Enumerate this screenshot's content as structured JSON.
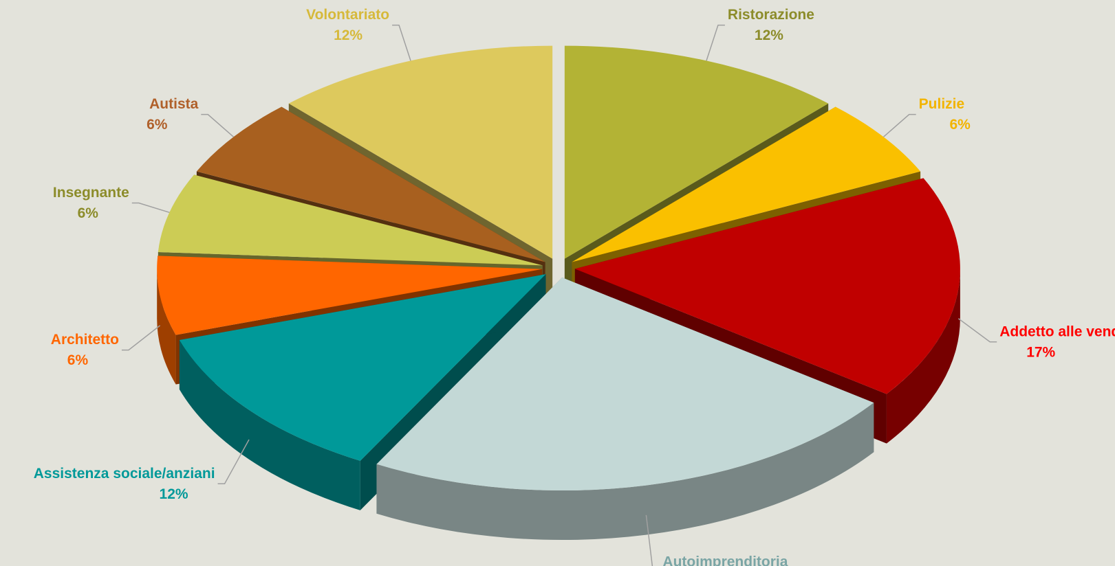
{
  "chart_data": {
    "type": "pie3d",
    "categories": [
      "Ristorazione",
      "Pulizie",
      "Addetto alle vendite",
      "Autoimprenditoria",
      "Assistenza sociale/anziani",
      "Architetto",
      "Insegnante",
      "Autista",
      "Volontariato"
    ],
    "values": [
      12,
      6,
      17,
      23,
      12,
      6,
      6,
      6,
      12
    ],
    "value_labels": [
      "12%",
      "6%",
      "17%",
      "23%",
      "12%",
      "6%",
      "6%",
      "6%",
      "12%"
    ],
    "colors": [
      "#b3b335",
      "#fac000",
      "#c00000",
      "#c3d8d6",
      "#009999",
      "#ff6600",
      "#cccc55",
      "#a8601f",
      "#ddc95d"
    ],
    "label_colors": [
      "#8c8c2a",
      "#f2b400",
      "#ff0000",
      "#7aa5a5",
      "#009999",
      "#ff6600",
      "#8c8c2a",
      "#b0602a",
      "#d6b93a"
    ]
  }
}
